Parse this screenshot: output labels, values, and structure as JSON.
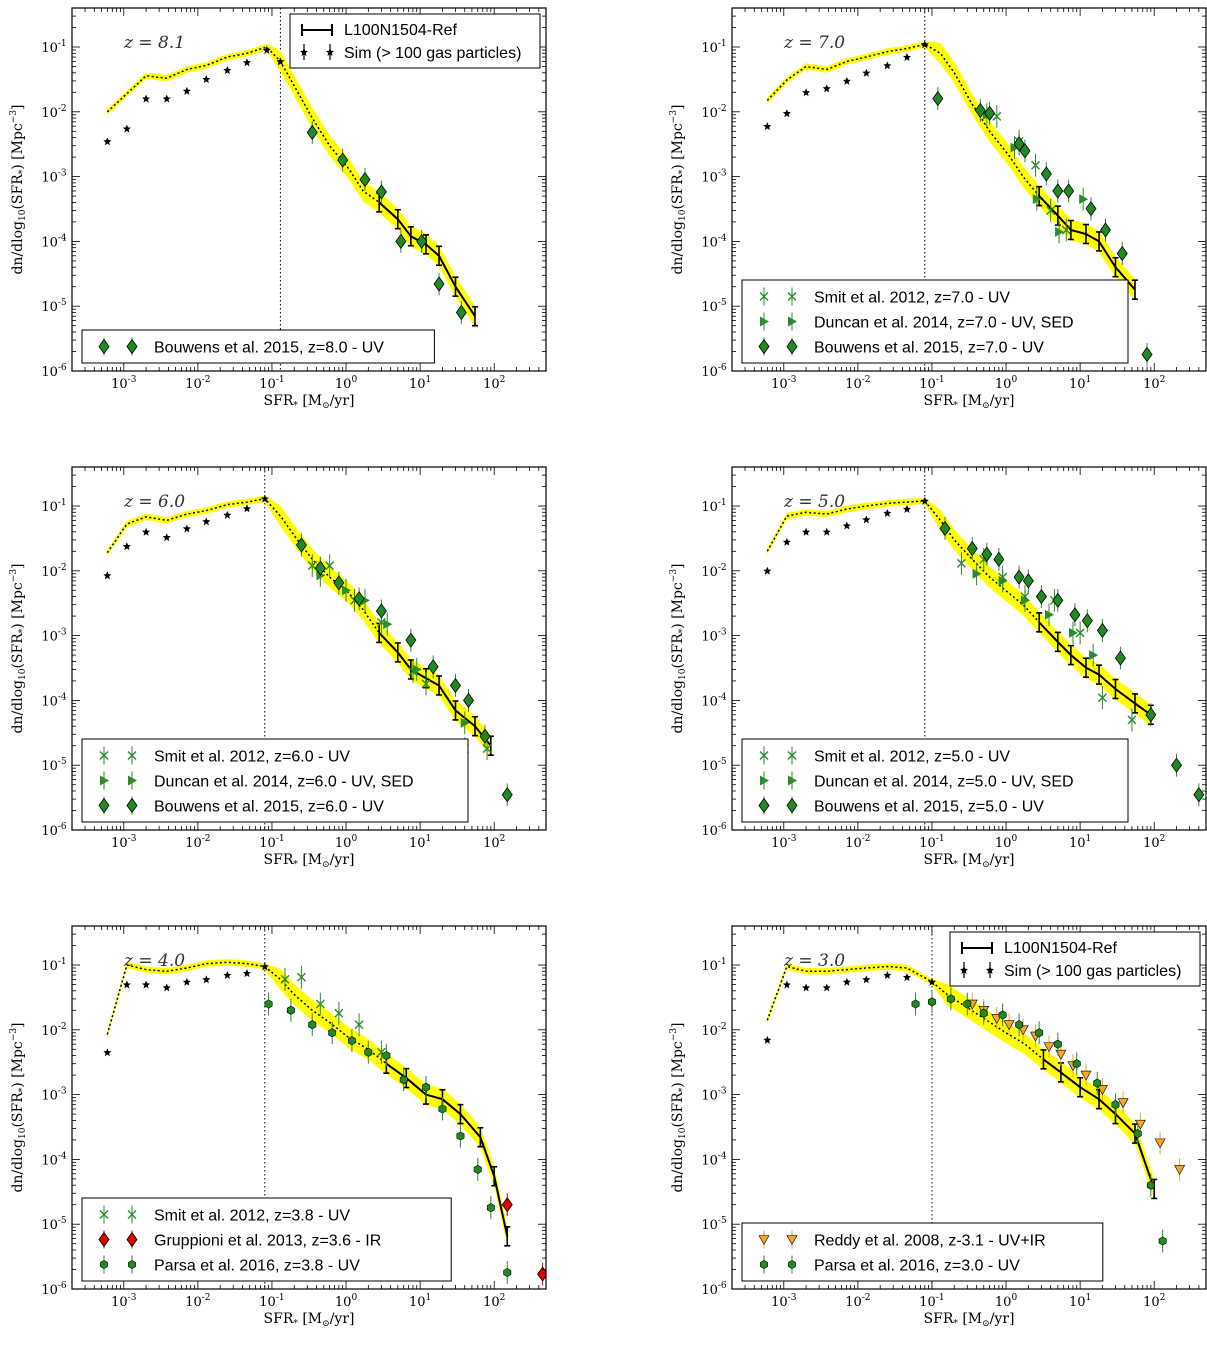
{
  "figure": {
    "xlabel": "SFR* [M⊙/yr]",
    "ylabel": "dn/dlog10(SFR*) [Mpc^-3]",
    "xticks": [
      "10^-3",
      "10^-2",
      "10^-1",
      "10^0",
      "10^1",
      "10^2"
    ],
    "yticks": [
      "10^-6",
      "10^-5",
      "10^-4",
      "10^-3",
      "10^-2",
      "10^-1"
    ],
    "colors": {
      "sim_band": "#ffff00",
      "sim_line": "#000000",
      "smit": "#2e8b2e",
      "bouwens": "#1f8a1f",
      "gruppioni": "#e00000",
      "reddy": "#f5a623",
      "parsa": "#1f8a1f"
    }
  },
  "chart_data": [
    {
      "type": "line",
      "panel": "z8",
      "label": "z = 8.1",
      "xscale": "log",
      "yscale": "log",
      "xlim": [
        0.0002,
        500
      ],
      "ylim": [
        1e-06,
        0.4
      ],
      "vline": 0.13,
      "series": [
        {
          "name": "L100N1504-Ref",
          "kind": "ref",
          "x": [
            0.0006,
            0.0011,
            0.002,
            0.0038,
            0.0071,
            0.013,
            0.025,
            0.046,
            0.085,
            0.13,
            0.2,
            0.35,
            0.6,
            1.1,
            1.7,
            2.8,
            5,
            7.5,
            12,
            18,
            30,
            55
          ],
          "y": [
            0.01,
            0.019,
            0.036,
            0.033,
            0.045,
            0.052,
            0.07,
            0.08,
            0.1,
            0.06,
            0.025,
            0.008,
            0.003,
            0.0013,
            0.0006,
            0.0004,
            0.00022,
            0.00012,
            9e-05,
            6e-05,
            2e-05,
            7e-06
          ]
        },
        {
          "name": "Sim (> 100 gas particles)",
          "kind": "sim",
          "x": [
            0.0006,
            0.0011,
            0.002,
            0.0038,
            0.0071,
            0.013,
            0.025,
            0.046,
            0.085,
            0.13
          ],
          "y": [
            0.0035,
            0.0055,
            0.016,
            0.016,
            0.021,
            0.032,
            0.044,
            0.058,
            0.09,
            0.06
          ]
        },
        {
          "name": "Bouwens et al. 2015, z=8.0 - UV",
          "kind": "diamond",
          "x": [
            0.35,
            0.9,
            1.8,
            3,
            5.5,
            10.5,
            18,
            36
          ],
          "y": [
            0.0048,
            0.0018,
            0.0009,
            0.00058,
            0.0001,
            0.0001,
            2.2e-05,
            8e-06
          ]
        }
      ]
    },
    {
      "type": "line",
      "panel": "z7",
      "label": "z = 7.0",
      "xscale": "log",
      "yscale": "log",
      "xlim": [
        0.0002,
        500
      ],
      "ylim": [
        1e-06,
        0.4
      ],
      "vline": 0.08,
      "series": [
        {
          "name": "L100N1504-Ref",
          "kind": "ref",
          "x": [
            0.0006,
            0.0011,
            0.002,
            0.0038,
            0.0071,
            0.013,
            0.025,
            0.046,
            0.08,
            0.13,
            0.2,
            0.35,
            0.6,
            1.1,
            1.7,
            2.8,
            5,
            7.5,
            12,
            18,
            30,
            55
          ],
          "y": [
            0.015,
            0.031,
            0.05,
            0.045,
            0.06,
            0.07,
            0.085,
            0.095,
            0.11,
            0.08,
            0.04,
            0.013,
            0.005,
            0.0021,
            0.001,
            0.0005,
            0.00025,
            0.00015,
            0.00013,
            0.0001,
            4e-05,
            1.8e-05
          ]
        },
        {
          "name": "Sim (> 100 gas particles)",
          "kind": "sim",
          "x": [
            0.0006,
            0.0011,
            0.002,
            0.0038,
            0.0071,
            0.013,
            0.025,
            0.046,
            0.08
          ],
          "y": [
            0.006,
            0.0095,
            0.02,
            0.023,
            0.03,
            0.04,
            0.052,
            0.07,
            0.11
          ]
        },
        {
          "name": "Smit et al. 2012, z=7.0 - UV",
          "kind": "cross",
          "x": [
            0.75,
            1.5,
            2.5,
            4,
            6.5
          ],
          "y": [
            0.0085,
            0.0035,
            0.0015,
            0.0003,
            0.00015
          ]
        },
        {
          "name": "Duncan et al. 2014, z=7.0 - UV, SED",
          "kind": "tri",
          "x": [
            0.55,
            1.3,
            2.6,
            5.2,
            11
          ],
          "y": [
            0.009,
            0.0028,
            0.00045,
            0.00014,
            0.00045
          ]
        },
        {
          "name": "Bouwens et al. 2015, z=7.0 - UV",
          "kind": "diamond",
          "x": [
            0.12,
            0.45,
            0.6,
            1.5,
            1.8,
            3.5,
            5,
            7,
            14,
            22,
            37,
            80
          ],
          "y": [
            0.016,
            0.0105,
            0.0095,
            0.0032,
            0.0025,
            0.0011,
            0.0006,
            0.0006,
            0.00032,
            0.00015,
            6.5e-05,
            1.8e-06
          ]
        }
      ]
    },
    {
      "type": "line",
      "panel": "z6",
      "label": "z = 6.0",
      "xscale": "log",
      "yscale": "log",
      "xlim": [
        0.0002,
        500
      ],
      "ylim": [
        1e-06,
        0.4
      ],
      "vline": 0.08,
      "series": [
        {
          "name": "L100N1504-Ref",
          "kind": "ref",
          "x": [
            0.0006,
            0.0011,
            0.002,
            0.0038,
            0.0071,
            0.013,
            0.025,
            0.046,
            0.08,
            0.13,
            0.2,
            0.35,
            0.6,
            1.1,
            1.7,
            2.8,
            5,
            7.5,
            12,
            18,
            30,
            55,
            90
          ],
          "y": [
            0.019,
            0.053,
            0.068,
            0.06,
            0.075,
            0.085,
            0.105,
            0.115,
            0.13,
            0.07,
            0.035,
            0.015,
            0.008,
            0.0045,
            0.0025,
            0.0011,
            0.00055,
            0.0003,
            0.00022,
            0.00017,
            7e-05,
            4e-05,
            2e-05
          ]
        },
        {
          "name": "Sim (> 100 gas particles)",
          "kind": "sim",
          "x": [
            0.0006,
            0.0011,
            0.002,
            0.0038,
            0.0071,
            0.013,
            0.025,
            0.046,
            0.08
          ],
          "y": [
            0.0085,
            0.024,
            0.04,
            0.033,
            0.045,
            0.058,
            0.073,
            0.092,
            0.13
          ]
        },
        {
          "name": "Smit et al. 2012, z=6.0 - UV",
          "kind": "cross",
          "x": [
            0.35,
            0.6,
            1.3,
            3,
            8,
            12,
            40,
            80
          ],
          "y": [
            0.012,
            0.012,
            0.0035,
            0.0016,
            0.00028,
            0.00018,
            1.8e-05,
            1.8e-05
          ]
        },
        {
          "name": "Duncan et al. 2014, z=6.0 - UV, SED",
          "kind": "tri",
          "x": [
            0.45,
            1,
            1.8,
            3.6,
            9,
            40
          ],
          "y": [
            0.0085,
            0.005,
            0.0035,
            0.0015,
            0.0003,
            4.5e-05
          ]
        },
        {
          "name": "Bouwens et al. 2015, z=6.0 - UV",
          "kind": "diamond",
          "x": [
            0.25,
            0.45,
            0.8,
            1.5,
            3,
            7.5,
            15,
            30,
            45,
            75,
            150
          ],
          "y": [
            0.025,
            0.011,
            0.0065,
            0.0037,
            0.0024,
            0.00085,
            0.00033,
            0.00017,
            0.0001,
            2.8e-05,
            3.5e-06
          ]
        }
      ]
    },
    {
      "type": "line",
      "panel": "z5",
      "label": "z = 5.0",
      "xscale": "log",
      "yscale": "log",
      "xlim": [
        0.0002,
        500
      ],
      "ylim": [
        1e-06,
        0.4
      ],
      "vline": 0.08,
      "series": [
        {
          "name": "L100N1504-Ref",
          "kind": "ref",
          "x": [
            0.0006,
            0.0011,
            0.002,
            0.0038,
            0.0071,
            0.013,
            0.025,
            0.046,
            0.08,
            0.13,
            0.2,
            0.35,
            0.6,
            1.1,
            1.7,
            2.8,
            5,
            7.5,
            12,
            18,
            30,
            55,
            90
          ],
          "y": [
            0.02,
            0.07,
            0.08,
            0.075,
            0.09,
            0.1,
            0.11,
            0.115,
            0.12,
            0.06,
            0.03,
            0.015,
            0.008,
            0.0045,
            0.003,
            0.0016,
            0.0008,
            0.0005,
            0.00032,
            0.00025,
            0.00015,
            9e-05,
            6e-05
          ]
        },
        {
          "name": "Sim (> 100 gas particles)",
          "kind": "sim",
          "x": [
            0.0006,
            0.0011,
            0.002,
            0.0038,
            0.0071,
            0.013,
            0.025,
            0.046,
            0.08
          ],
          "y": [
            0.01,
            0.028,
            0.04,
            0.04,
            0.05,
            0.062,
            0.078,
            0.09,
            0.12
          ]
        },
        {
          "name": "Smit et al. 2012, z=5.0 - UV",
          "kind": "cross",
          "x": [
            0.25,
            0.5,
            0.9,
            1.8,
            4.5,
            10,
            20,
            50
          ],
          "y": [
            0.013,
            0.015,
            0.008,
            0.004,
            0.0035,
            0.0011,
            0.00011,
            5e-05
          ]
        },
        {
          "name": "Duncan et al. 2014, z=5.0 - UV, SED",
          "kind": "tri",
          "x": [
            0.4,
            0.9,
            1.8,
            3.8,
            8,
            15
          ],
          "y": [
            0.009,
            0.007,
            0.0035,
            0.0021,
            0.0011,
            0.0005
          ]
        },
        {
          "name": "Bouwens et al. 2015, z=5.0 - UV",
          "kind": "diamond",
          "x": [
            0.15,
            0.35,
            0.55,
            0.8,
            1.5,
            2,
            3,
            5,
            8.5,
            12.5,
            20,
            35,
            90,
            200,
            400
          ],
          "y": [
            0.045,
            0.022,
            0.018,
            0.015,
            0.008,
            0.007,
            0.004,
            0.0035,
            0.0021,
            0.0017,
            0.0012,
            0.00045,
            6e-05,
            1e-05,
            3.5e-06
          ]
        }
      ]
    },
    {
      "type": "line",
      "panel": "z4",
      "label": "z = 4.0",
      "xscale": "log",
      "yscale": "log",
      "xlim": [
        0.0002,
        500
      ],
      "ylim": [
        1e-06,
        0.4
      ],
      "vline": 0.08,
      "series": [
        {
          "name": "L100N1504-Ref",
          "kind": "ref",
          "x": [
            0.0006,
            0.0011,
            0.002,
            0.0038,
            0.0071,
            0.013,
            0.025,
            0.046,
            0.08,
            0.13,
            0.2,
            0.35,
            0.6,
            1.1,
            2,
            3.5,
            6.5,
            12,
            20,
            35,
            65,
            100,
            150
          ],
          "y": [
            0.0085,
            0.1,
            0.085,
            0.08,
            0.09,
            0.105,
            0.11,
            0.105,
            0.095,
            0.06,
            0.035,
            0.02,
            0.013,
            0.0075,
            0.005,
            0.003,
            0.0018,
            0.001,
            0.00085,
            0.0005,
            0.00022,
            5.5e-05,
            6.5e-06
          ]
        },
        {
          "name": "Sim (> 100 gas particles)",
          "kind": "sim",
          "x": [
            0.0006,
            0.0011,
            0.002,
            0.0038,
            0.0071,
            0.013,
            0.025,
            0.046,
            0.08
          ],
          "y": [
            0.0045,
            0.05,
            0.05,
            0.045,
            0.055,
            0.06,
            0.07,
            0.075,
            0.095
          ]
        },
        {
          "name": "Smit et al. 2012, z=3.8 - UV",
          "kind": "cross",
          "x": [
            0.15,
            0.25,
            0.45,
            0.8,
            1.5,
            3
          ],
          "y": [
            0.06,
            0.065,
            0.025,
            0.018,
            0.012,
            0.0045
          ]
        },
        {
          "name": "Gruppioni et al. 2013, z=3.6 - IR",
          "kind": "reddiamond",
          "x": [
            150,
            450
          ],
          "y": [
            2e-05,
            1.7e-06
          ]
        },
        {
          "name": "Parsa et al. 2016, z=3.8 - UV",
          "kind": "hex",
          "x": [
            0.09,
            0.18,
            0.35,
            0.65,
            1.2,
            2,
            3.5,
            6,
            12,
            20,
            35,
            60,
            90,
            150
          ],
          "y": [
            0.025,
            0.02,
            0.012,
            0.009,
            0.0068,
            0.0045,
            0.004,
            0.0017,
            0.0013,
            0.0006,
            0.00023,
            7e-05,
            1.8e-05,
            1.8e-06
          ]
        }
      ]
    },
    {
      "type": "line",
      "panel": "z3",
      "label": "z = 3.0",
      "xscale": "log",
      "yscale": "log",
      "xlim": [
        0.0002,
        500
      ],
      "ylim": [
        1e-06,
        0.4
      ],
      "vline": 0.1,
      "series": [
        {
          "name": "L100N1504-Ref",
          "kind": "ref",
          "x": [
            0.0006,
            0.0011,
            0.002,
            0.0038,
            0.0071,
            0.013,
            0.025,
            0.046,
            0.1,
            0.16,
            0.3,
            0.55,
            1,
            1.8,
            3.2,
            5.5,
            10,
            18,
            30,
            55,
            100
          ],
          "y": [
            0.014,
            0.095,
            0.08,
            0.08,
            0.085,
            0.09,
            0.095,
            0.09,
            0.055,
            0.035,
            0.022,
            0.014,
            0.009,
            0.006,
            0.0035,
            0.0022,
            0.0013,
            0.00085,
            0.0005,
            0.00025,
            3.5e-05
          ]
        },
        {
          "name": "Sim (> 100 gas particles)",
          "kind": "sim",
          "x": [
            0.0006,
            0.0011,
            0.002,
            0.0038,
            0.0071,
            0.013,
            0.025,
            0.046,
            0.1
          ],
          "y": [
            0.007,
            0.05,
            0.045,
            0.045,
            0.055,
            0.06,
            0.07,
            0.065,
            0.055
          ]
        },
        {
          "name": "Reddy et al. 2008, z-3.1 - UV+IR",
          "kind": "downtri",
          "x": [
            0.35,
            0.5,
            0.75,
            1.1,
            1.7,
            2.5,
            3.8,
            5.5,
            8,
            12,
            20,
            38,
            65,
            120,
            220
          ],
          "y": [
            0.025,
            0.02,
            0.015,
            0.012,
            0.01,
            0.008,
            0.0055,
            0.0042,
            0.0028,
            0.002,
            0.0012,
            0.00075,
            0.00035,
            0.00018,
            7e-05
          ]
        },
        {
          "name": "Parsa et al. 2016, z=3.0 - UV",
          "kind": "hex",
          "x": [
            0.06,
            0.1,
            0.18,
            0.3,
            0.5,
            0.9,
            1.5,
            2.8,
            5,
            9,
            17,
            30,
            60,
            90,
            130
          ],
          "y": [
            0.025,
            0.027,
            0.03,
            0.025,
            0.018,
            0.017,
            0.012,
            0.009,
            0.006,
            0.003,
            0.0015,
            0.0007,
            0.00025,
            4e-05,
            5.5e-06
          ]
        }
      ]
    }
  ]
}
